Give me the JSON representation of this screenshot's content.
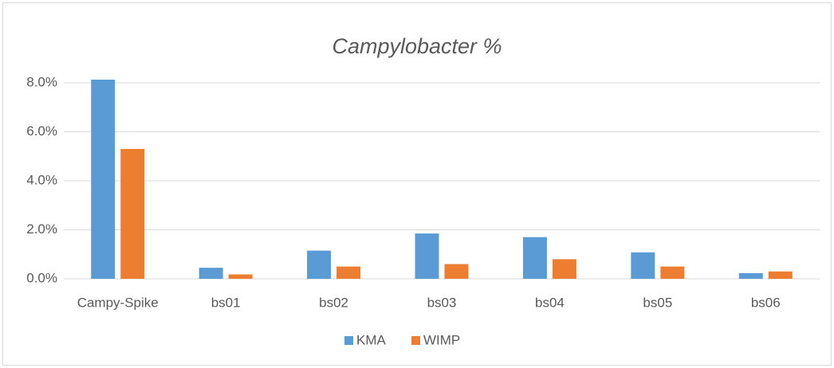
{
  "chart_data": {
    "type": "bar",
    "title": "Campylobacter %",
    "categories": [
      "Campy-Spike",
      "bs01",
      "bs02",
      "bs03",
      "bs04",
      "bs05",
      "bs06"
    ],
    "series": [
      {
        "name": "KMA",
        "color": "#5b9bd5",
        "values": [
          8.13,
          0.45,
          1.15,
          1.85,
          1.7,
          1.08,
          0.23
        ]
      },
      {
        "name": "WIMP",
        "color": "#ed7d31",
        "values": [
          5.3,
          0.18,
          0.5,
          0.6,
          0.8,
          0.5,
          0.3
        ]
      }
    ],
    "ylim": [
      0,
      8
    ],
    "yticks": [
      {
        "value": 0,
        "label": "0.0%"
      },
      {
        "value": 2,
        "label": "2.0%"
      },
      {
        "value": 4,
        "label": "4.0%"
      },
      {
        "value": 6,
        "label": "6.0%"
      },
      {
        "value": 8,
        "label": "8.0%"
      }
    ],
    "grid": true,
    "legend": "bottom"
  }
}
